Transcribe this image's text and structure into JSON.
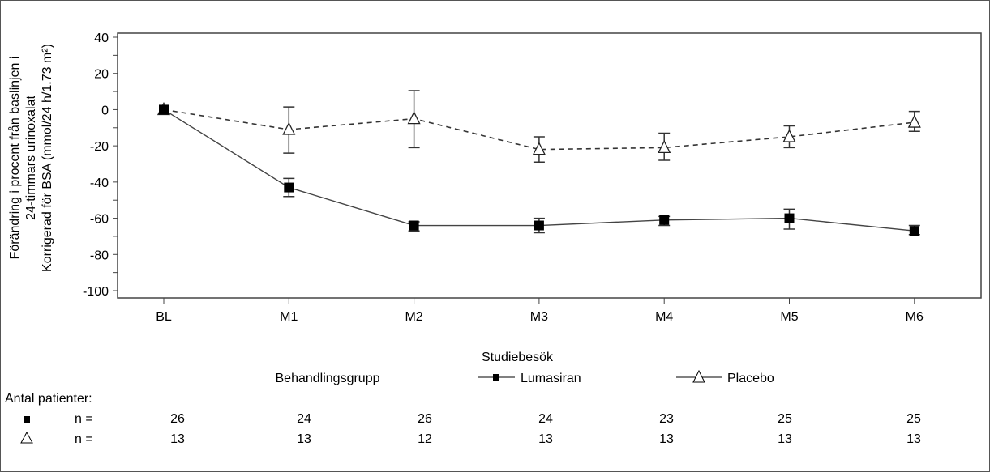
{
  "chart_data": {
    "type": "line",
    "title": "",
    "xlabel": "Studiebesök",
    "ylabel_lines": [
      "Förändring i procent från baslinjen i",
      "24-timmars urinoxalat",
      "Korrigerad för BSA (mmol/24 h/1.73 m²)"
    ],
    "categories": [
      "BL",
      "M1",
      "M2",
      "M3",
      "M4",
      "M5",
      "M6"
    ],
    "ylim": [
      -100,
      40
    ],
    "yticks": [
      40,
      20,
      0,
      -20,
      -40,
      -60,
      -80,
      -100
    ],
    "grid": false,
    "legend_title": "Behandlingsgrupp",
    "series": [
      {
        "name": "Lumasiran",
        "marker": "filled-square",
        "line": "solid",
        "values": [
          0,
          -43,
          -64,
          -64,
          -61,
          -60,
          -67
        ],
        "err_low": [
          -1,
          -48,
          -67,
          -68,
          -64,
          -66,
          -69
        ],
        "err_high": [
          1,
          -38,
          -62,
          -60,
          -59,
          -55,
          -64
        ]
      },
      {
        "name": "Placebo",
        "marker": "open-triangle",
        "line": "dashed",
        "values": [
          0,
          -11,
          -5,
          -22,
          -21,
          -15,
          -7
        ],
        "err_low": [
          -1,
          -24,
          -21,
          -29,
          -28,
          -21,
          -12
        ],
        "err_high": [
          1,
          1.5,
          10.5,
          -15,
          -13,
          -9,
          -1
        ]
      }
    ]
  },
  "legend": {
    "lumasiran": "Lumasiran",
    "placebo": "Placebo"
  },
  "patients": {
    "label": "Antal patienter:",
    "n_label": "n =",
    "lumasiran": [
      26,
      24,
      26,
      24,
      23,
      25,
      25
    ],
    "placebo": [
      13,
      13,
      12,
      13,
      13,
      13,
      13
    ]
  }
}
